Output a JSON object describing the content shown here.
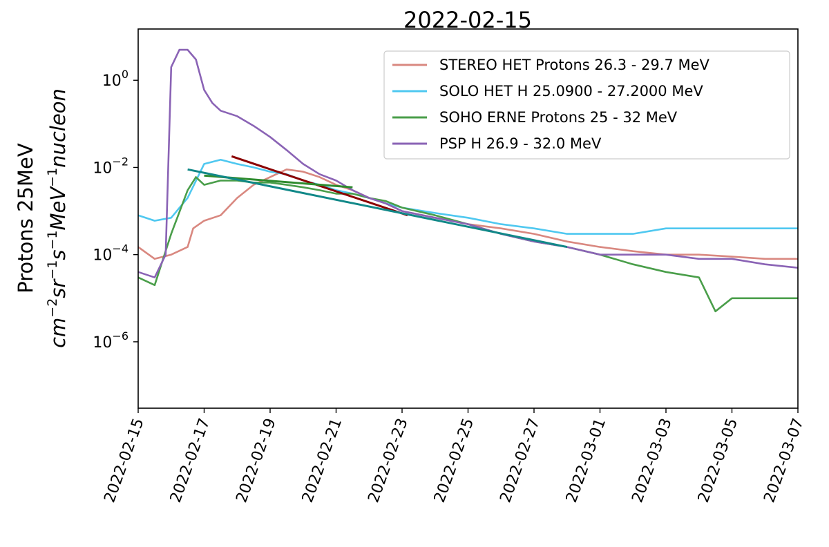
{
  "chart_data": {
    "type": "line",
    "title": "2022-02-15",
    "xlabel": "",
    "ylabel_line1": "Protons 25MeV",
    "ylabel_line2_parts": [
      "cm",
      "−2",
      "sr",
      "−1",
      "s",
      "−1",
      "MeV",
      "−1",
      "nucleon"
    ],
    "y_scale": "log",
    "ylim": [
      3e-08,
      15
    ],
    "xlim": [
      "2022-02-15",
      "2022-03-07"
    ],
    "x_ticks": [
      "2022-02-15",
      "2022-02-17",
      "2022-02-19",
      "2022-02-21",
      "2022-02-23",
      "2022-02-25",
      "2022-02-27",
      "2022-03-01",
      "2022-03-03",
      "2022-03-05",
      "2022-03-07"
    ],
    "y_ticks": [
      {
        "value": 1,
        "base": "10",
        "exp": "0"
      },
      {
        "value": 0.01,
        "base": "10",
        "exp": "−2"
      },
      {
        "value": 0.0001,
        "base": "10",
        "exp": "−4"
      },
      {
        "value": 1e-06,
        "base": "10",
        "exp": "−6"
      }
    ],
    "legend_position": "top-right",
    "series": [
      {
        "name": "STEREO HET Protons 26.3 - 29.7 MeV",
        "color": "#d98880",
        "points": [
          [
            "2022-02-15T00:00",
            0.00015
          ],
          [
            "2022-02-15T12:00",
            8e-05
          ],
          [
            "2022-02-16T00:00",
            0.0001
          ],
          [
            "2022-02-16T12:00",
            0.00015
          ],
          [
            "2022-02-16T16:00",
            0.0004
          ],
          [
            "2022-02-17T00:00",
            0.0006
          ],
          [
            "2022-02-17T12:00",
            0.0008
          ],
          [
            "2022-02-18T00:00",
            0.002
          ],
          [
            "2022-02-18T12:00",
            0.004
          ],
          [
            "2022-02-19T00:00",
            0.006
          ],
          [
            "2022-02-19T12:00",
            0.009
          ],
          [
            "2022-02-20T00:00",
            0.008
          ],
          [
            "2022-02-20T12:00",
            0.006
          ],
          [
            "2022-02-21T00:00",
            0.004
          ],
          [
            "2022-02-21T12:00",
            0.003
          ],
          [
            "2022-02-22T00:00",
            0.002
          ],
          [
            "2022-02-22T12:00",
            0.0015
          ],
          [
            "2022-02-23T00:00",
            0.001
          ],
          [
            "2022-02-24T00:00",
            0.0007
          ],
          [
            "2022-02-25T00:00",
            0.0005
          ],
          [
            "2022-02-26T00:00",
            0.0004
          ],
          [
            "2022-02-27T00:00",
            0.0003
          ],
          [
            "2022-02-28T00:00",
            0.0002
          ],
          [
            "2022-03-01T00:00",
            0.00015
          ],
          [
            "2022-03-02T00:00",
            0.00012
          ],
          [
            "2022-03-03T00:00",
            0.0001
          ],
          [
            "2022-03-04T00:00",
            0.0001
          ],
          [
            "2022-03-05T00:00",
            9e-05
          ],
          [
            "2022-03-06T00:00",
            8e-05
          ],
          [
            "2022-03-07T00:00",
            8e-05
          ]
        ]
      },
      {
        "name": "SOLO HET H 25.0900 - 27.2000 MeV",
        "color": "#4fc8f0",
        "points": [
          [
            "2022-02-15T00:00",
            0.0008
          ],
          [
            "2022-02-15T12:00",
            0.0006
          ],
          [
            "2022-02-16T00:00",
            0.0007
          ],
          [
            "2022-02-16T12:00",
            0.002
          ],
          [
            "2022-02-17T00:00",
            0.012
          ],
          [
            "2022-02-17T12:00",
            0.015
          ],
          [
            "2022-02-18T00:00",
            0.012
          ],
          [
            "2022-02-18T12:00",
            0.01
          ],
          [
            "2022-02-19T00:00",
            0.008
          ],
          [
            "2022-02-19T12:00",
            0.007
          ],
          [
            "2022-02-20T00:00",
            0.005
          ],
          [
            "2022-02-20T12:00",
            0.004
          ],
          [
            "2022-02-21T00:00",
            0.003
          ],
          [
            "2022-02-21T12:00",
            0.0025
          ],
          [
            "2022-02-22T00:00",
            0.002
          ],
          [
            "2022-02-22T12:00",
            0.0015
          ],
          [
            "2022-02-23T00:00",
            0.0012
          ],
          [
            "2022-02-24T00:00",
            0.0009
          ],
          [
            "2022-02-25T00:00",
            0.0007
          ],
          [
            "2022-02-26T00:00",
            0.0005
          ],
          [
            "2022-02-27T00:00",
            0.0004
          ],
          [
            "2022-02-28T00:00",
            0.0003
          ],
          [
            "2022-03-01T00:00",
            0.0003
          ],
          [
            "2022-03-02T00:00",
            0.0003
          ],
          [
            "2022-03-03T00:00",
            0.0004
          ],
          [
            "2022-03-04T00:00",
            0.0004
          ],
          [
            "2022-03-05T00:00",
            0.0004
          ],
          [
            "2022-03-06T00:00",
            0.0004
          ],
          [
            "2022-03-07T00:00",
            0.0004
          ]
        ]
      },
      {
        "name": "SOHO ERNE Protons 25  - 32  MeV",
        "color": "#4a9e4a",
        "points": [
          [
            "2022-02-15T00:00",
            3e-05
          ],
          [
            "2022-02-15T12:00",
            2e-05
          ],
          [
            "2022-02-16T00:00",
            0.0003
          ],
          [
            "2022-02-16T12:00",
            0.003
          ],
          [
            "2022-02-16T18:00",
            0.006
          ],
          [
            "2022-02-17T00:00",
            0.004
          ],
          [
            "2022-02-17T12:00",
            0.005
          ],
          [
            "2022-02-18T00:00",
            0.005
          ],
          [
            "2022-02-18T12:00",
            0.0045
          ],
          [
            "2022-02-19T00:00",
            0.0045
          ],
          [
            "2022-02-19T12:00",
            0.004
          ],
          [
            "2022-02-20T00:00",
            0.0035
          ],
          [
            "2022-02-20T12:00",
            0.003
          ],
          [
            "2022-02-21T00:00",
            0.0025
          ],
          [
            "2022-02-21T12:00",
            0.0025
          ],
          [
            "2022-02-22T00:00",
            0.002
          ],
          [
            "2022-02-22T12:00",
            0.0017
          ],
          [
            "2022-02-23T00:00",
            0.0012
          ],
          [
            "2022-02-24T00:00",
            0.0008
          ],
          [
            "2022-02-25T00:00",
            0.0005
          ],
          [
            "2022-02-26T00:00",
            0.0003
          ],
          [
            "2022-02-27T00:00",
            0.0002
          ],
          [
            "2022-02-28T00:00",
            0.00015
          ],
          [
            "2022-03-01T00:00",
            0.0001
          ],
          [
            "2022-03-02T00:00",
            6e-05
          ],
          [
            "2022-03-03T00:00",
            4e-05
          ],
          [
            "2022-03-04T00:00",
            3e-05
          ],
          [
            "2022-03-04T12:00",
            5e-06
          ],
          [
            "2022-03-05T00:00",
            1e-05
          ],
          [
            "2022-03-06T00:00",
            1e-05
          ],
          [
            "2022-03-07T00:00",
            1e-05
          ]
        ]
      },
      {
        "name": "PSP H  26.9 -  32.0 MeV",
        "color": "#8a63b5",
        "points": [
          [
            "2022-02-15T00:00",
            4e-05
          ],
          [
            "2022-02-15T12:00",
            3e-05
          ],
          [
            "2022-02-15T20:00",
            0.0001
          ],
          [
            "2022-02-16T00:00",
            2
          ],
          [
            "2022-02-16T06:00",
            5
          ],
          [
            "2022-02-16T12:00",
            5
          ],
          [
            "2022-02-16T18:00",
            3
          ],
          [
            "2022-02-17T00:00",
            0.6
          ],
          [
            "2022-02-17T06:00",
            0.3
          ],
          [
            "2022-02-17T12:00",
            0.2
          ],
          [
            "2022-02-18T00:00",
            0.15
          ],
          [
            "2022-02-18T12:00",
            0.09
          ],
          [
            "2022-02-19T00:00",
            0.05
          ],
          [
            "2022-02-19T12:00",
            0.025
          ],
          [
            "2022-02-20T00:00",
            0.012
          ],
          [
            "2022-02-20T12:00",
            0.007
          ],
          [
            "2022-02-21T00:00",
            0.005
          ],
          [
            "2022-02-21T12:00",
            0.003
          ],
          [
            "2022-02-22T00:00",
            0.002
          ],
          [
            "2022-02-22T12:00",
            0.0015
          ],
          [
            "2022-02-23T00:00",
            0.001
          ],
          [
            "2022-02-24T00:00",
            0.0007
          ],
          [
            "2022-02-25T00:00",
            0.0005
          ],
          [
            "2022-02-26T00:00",
            0.0003
          ],
          [
            "2022-02-27T00:00",
            0.0002
          ],
          [
            "2022-02-28T00:00",
            0.00015
          ],
          [
            "2022-03-01T00:00",
            0.0001
          ],
          [
            "2022-03-02T00:00",
            0.0001
          ],
          [
            "2022-03-03T00:00",
            0.0001
          ],
          [
            "2022-03-04T00:00",
            8e-05
          ],
          [
            "2022-03-05T00:00",
            8e-05
          ],
          [
            "2022-03-06T00:00",
            6e-05
          ],
          [
            "2022-03-07T00:00",
            5e-05
          ]
        ]
      }
    ],
    "fits": [
      {
        "color": "#8b0000",
        "points": [
          [
            "2022-02-17T20:00",
            0.018
          ],
          [
            "2022-02-23T04:00",
            0.0008
          ]
        ]
      },
      {
        "color": "#2e8b2e",
        "points": [
          [
            "2022-02-17T00:00",
            0.0065
          ],
          [
            "2022-02-21T12:00",
            0.0035
          ]
        ]
      },
      {
        "color": "#118888",
        "points": [
          [
            "2022-02-16T12:00",
            0.009
          ],
          [
            "2022-02-28T00:00",
            0.00015
          ]
        ]
      }
    ]
  }
}
